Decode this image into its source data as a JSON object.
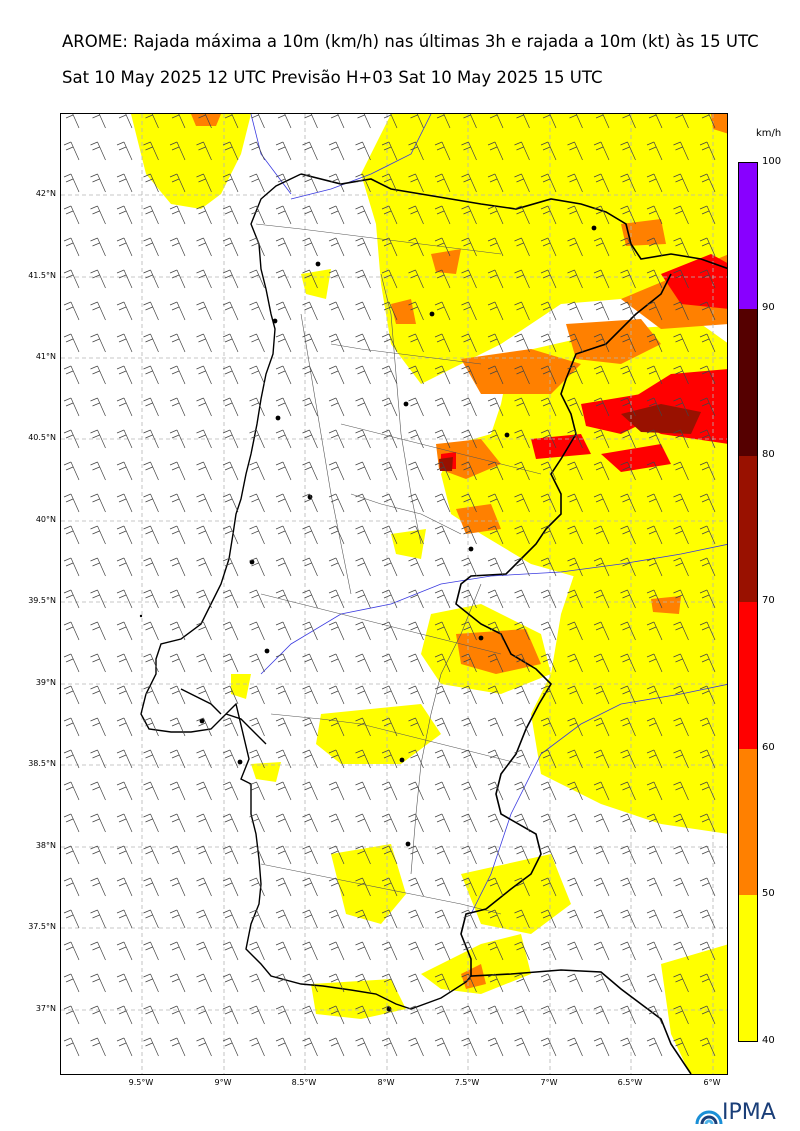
{
  "header": {
    "title_line1": "AROME: Rajada máxima a 10m (km/h) nas últimas 3h e rajada a 10m (kt) às 15 UTC",
    "title_line2": "Sat 10 May 2025 12 UTC Previsão H+03 Sat 10 May 2025 15 UTC"
  },
  "map": {
    "lat_ticks": [
      "42°N",
      "41.5°N",
      "41°N",
      "40.5°N",
      "40°N",
      "39.5°N",
      "39°N",
      "38.5°N",
      "38°N",
      "37.5°N",
      "37°N"
    ],
    "lon_ticks": [
      "9.5°W",
      "9°W",
      "8.5°W",
      "8°W",
      "7.5°W",
      "7°W",
      "6.5°W",
      "6°W"
    ],
    "extent": {
      "lon_min": -10.0,
      "lon_max": -5.9,
      "lat_min": 36.6,
      "lat_max": 42.5
    },
    "wind_field": "westerly-to-northwesterly barbs, mostly 10–20 kt",
    "colors": {
      "coast": "#000000",
      "border": "#000000",
      "district": "#555555",
      "river": "#3a3ae0",
      "grid": "#b5b5b5"
    }
  },
  "colorbar": {
    "unit": "km/h",
    "ticks": [
      "100",
      "90",
      "80",
      "70",
      "60",
      "50",
      "40"
    ],
    "bins": [
      {
        "from": 40,
        "to": 50,
        "color": "#ffff00"
      },
      {
        "from": 50,
        "to": 60,
        "color": "#ff8000"
      },
      {
        "from": 60,
        "to": 70,
        "color": "#ff0000"
      },
      {
        "from": 70,
        "to": 80,
        "color": "#991100"
      },
      {
        "from": 80,
        "to": 90,
        "color": "#550000"
      },
      {
        "from": 90,
        "to": 100,
        "color": "#8800ff"
      }
    ]
  },
  "logo": {
    "text": "IPMA"
  }
}
